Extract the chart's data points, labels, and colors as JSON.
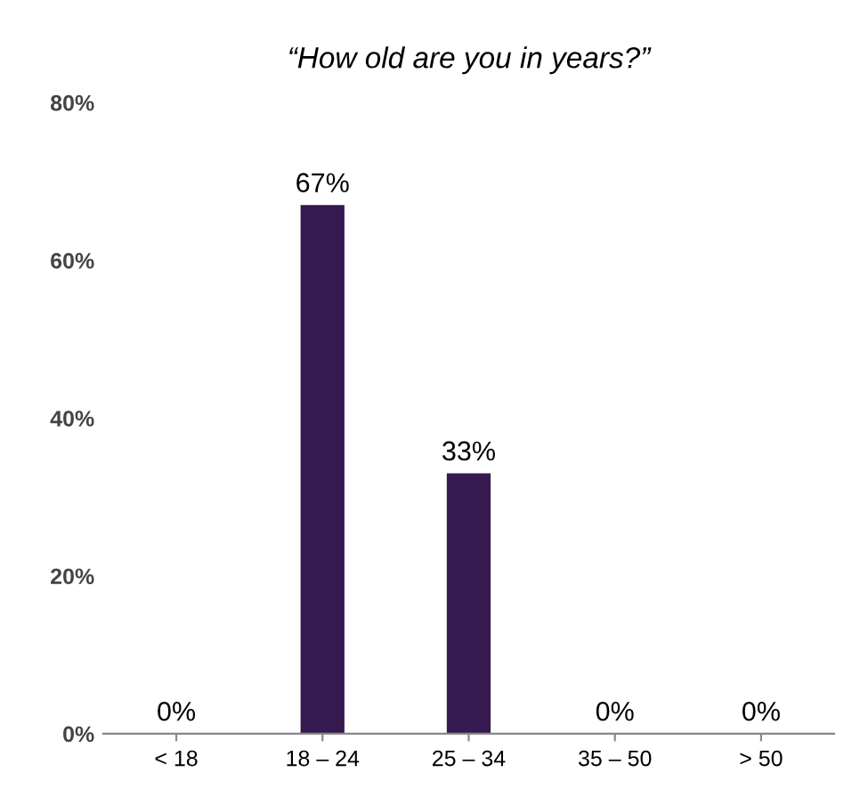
{
  "chart_data": {
    "type": "bar",
    "title": "“How old are you in years?”",
    "categories": [
      "< 18",
      "18 – 24",
      "25 – 34",
      "35 – 50",
      "> 50"
    ],
    "values": [
      0,
      67,
      33,
      0,
      0
    ],
    "value_labels": [
      "0%",
      "67%",
      "33%",
      "0%",
      "0%"
    ],
    "color": "#361a4f",
    "ylim": [
      0,
      80
    ],
    "yticks": [
      {
        "value": 0,
        "label": "0%"
      },
      {
        "value": 20,
        "label": "20%"
      },
      {
        "value": 40,
        "label": "40%"
      },
      {
        "value": 60,
        "label": "60%"
      },
      {
        "value": 80,
        "label": "80%"
      }
    ],
    "grid": false,
    "legend": false
  }
}
